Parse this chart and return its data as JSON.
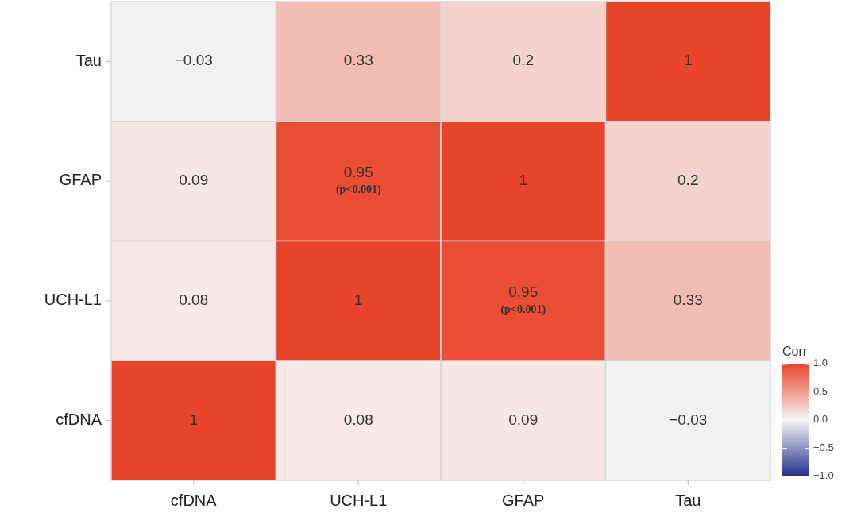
{
  "chart_data": {
    "type": "heatmap",
    "clabel": "Corr",
    "categories": [
      "cfDNA",
      "UCH-L1",
      "GFAP",
      "Tau"
    ],
    "y_categories": [
      "Tau",
      "GFAP",
      "UCH-L1",
      "cfDNA"
    ],
    "cells": [
      [
        -0.03,
        0.33,
        0.2,
        1
      ],
      [
        0.09,
        0.95,
        1,
        0.2
      ],
      [
        0.08,
        1,
        0.95,
        0.33
      ],
      [
        1,
        0.08,
        0.09,
        -0.03
      ]
    ],
    "cell_labels": [
      [
        "−0.03",
        "0.33",
        "0.2",
        "1"
      ],
      [
        "0.09",
        "0.95\n(p<0.001)",
        "1",
        "0.2"
      ],
      [
        "0.08",
        "1",
        "0.95\n(p<0.001)",
        "0.33"
      ],
      [
        "1",
        "0.08",
        "0.09",
        "−0.03"
      ]
    ],
    "clim": [
      -1,
      1
    ],
    "cticks": [
      {
        "value": 1,
        "label": "1.0"
      },
      {
        "value": 0.5,
        "label": "0.5"
      },
      {
        "value": 0,
        "label": "0.0"
      },
      {
        "value": -0.5,
        "label": "−0.5"
      },
      {
        "value": -1,
        "label": "−1.0"
      }
    ]
  }
}
